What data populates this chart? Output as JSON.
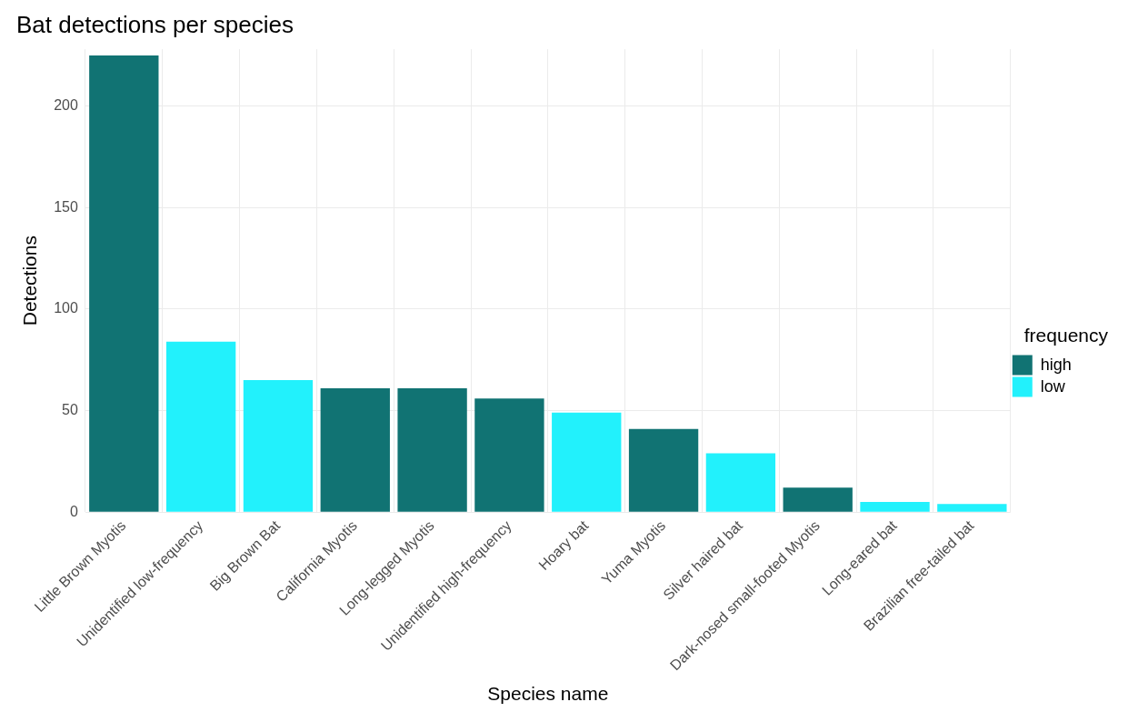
{
  "chart_data": {
    "type": "bar",
    "title": "Bat detections per species",
    "xlabel": "Species name",
    "ylabel": "Detections",
    "legend_title": "frequency",
    "categories": [
      "Little Brown Myotis",
      "Unidentified low-frequency",
      "Big Brown Bat",
      "California Myotis",
      "Long-legged Myotis",
      "Unidentified high-frequency",
      "Hoary bat",
      "Yuma Myotis",
      "Silver haired bat",
      "Dark-nosed small-footed Myotis",
      "Long-eared bat",
      "Brazilian free-tailed bat"
    ],
    "series": [
      {
        "name": "high",
        "color": "#117373",
        "values": [
          225,
          null,
          null,
          61,
          61,
          56,
          null,
          41,
          null,
          12,
          null,
          null
        ]
      },
      {
        "name": "low",
        "color": "#22f1fc",
        "values": [
          null,
          84,
          65,
          null,
          null,
          null,
          49,
          null,
          29,
          null,
          5,
          4
        ]
      }
    ],
    "stacked": true,
    "ylim": [
      0,
      228
    ],
    "yticks": [
      0,
      50,
      100,
      150,
      200
    ],
    "grid": true,
    "legend": "right"
  }
}
